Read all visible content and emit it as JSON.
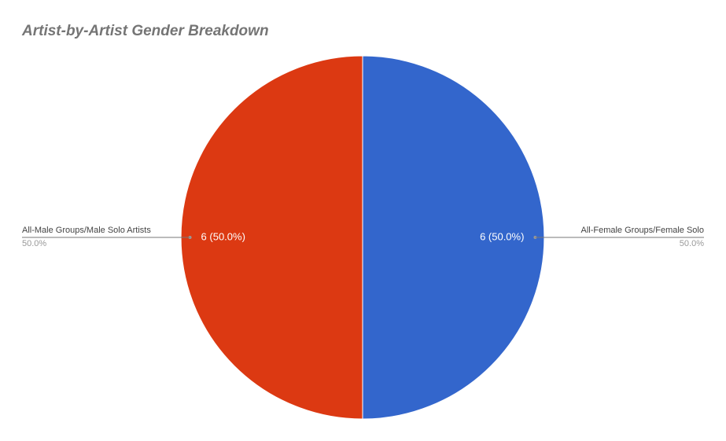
{
  "chart_data": {
    "type": "pie",
    "title": "Artist-by-Artist Gender Breakdown",
    "categories": [
      "All-Female Groups/Female Solo",
      "All-Male Groups/Male Solo Artists"
    ],
    "values": [
      6,
      6
    ],
    "value_labels": [
      "6 (50.0%)",
      "6 (50.0%)"
    ],
    "percents": [
      50,
      50
    ],
    "percent_labels": [
      "50.0%",
      "50.0%"
    ],
    "colors": [
      "#3366cc",
      "#dc3912"
    ]
  }
}
